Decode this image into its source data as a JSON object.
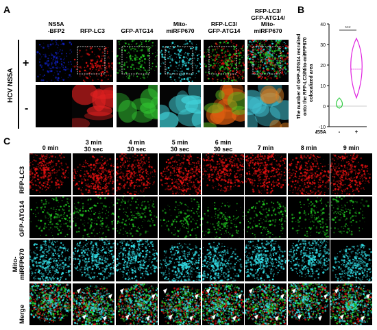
{
  "panel_a": {
    "letter": "A",
    "columns": [
      "NS5A\n-BFP2",
      "RFP-LC3",
      "GFP-ATG14",
      "Mito-\nmiRFP670",
      "RFP-LC3/\nGFP-ATG14",
      "RFP-LC3/\nGFP-ATG14/\nMito-\nmiRFP670"
    ],
    "group_label": "HCV NS5A",
    "row_plus": "+",
    "row_minus": "-"
  },
  "panel_b": {
    "letter": "B",
    "ylabel_lines": [
      "The number of GFP-ATG14 recruited",
      "onto the RFP-LC3/Mito-miRFP670",
      "colocalized area"
    ],
    "xlabel": "HCV NS5A",
    "significance": "***"
  },
  "chart_data": {
    "type": "violin",
    "categories": [
      "-",
      "+"
    ],
    "ylim": [
      -10,
      40
    ],
    "yticks": [
      "-10",
      "0",
      "10",
      "20",
      "30",
      "40"
    ],
    "series": [
      {
        "category": "-",
        "median": 0,
        "min": -1,
        "max": 4,
        "color": "#2ecc40"
      },
      {
        "category": "+",
        "median": 18,
        "min": 4,
        "max": 33,
        "color": "#e020e0"
      }
    ]
  },
  "panel_c": {
    "letter": "C",
    "times": [
      "0 min",
      "3 min\n30 sec",
      "4 min\n30 sec",
      "5 min\n30 sec",
      "6 min\n30 sec",
      "7 min",
      "8 min",
      "9 min"
    ],
    "rows": [
      "RFP-LC3",
      "GFP-ATG14",
      "Mito-\nmiRFP670",
      "Merge"
    ]
  },
  "colors": {
    "red": "#e01010",
    "green": "#20c020",
    "cyan": "#30d8e0",
    "blue": "#1020c0"
  }
}
